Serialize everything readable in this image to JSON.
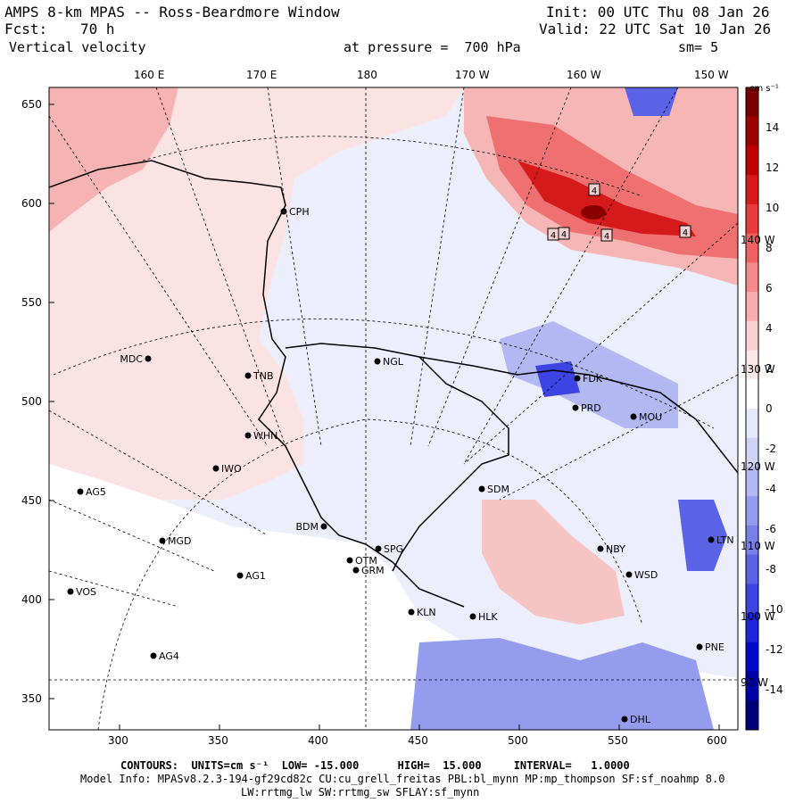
{
  "header": {
    "title": "AMPS 8-km MPAS -- Ross-Beardmore Window",
    "init": "Init: 00 UTC Thu 08 Jan 26",
    "fcst_label": "Fcst:",
    "fcst_value": "70 h",
    "valid": "Valid: 22 UTC Sat 10 Jan 26",
    "field": "Vertical velocity",
    "pressure": "at pressure =  700 hPa",
    "smooth": "sm= 5"
  },
  "axes": {
    "top_lon": [
      "160 E",
      "170 E",
      "180",
      "170 W",
      "160 W",
      "150 W"
    ],
    "x_ticks": [
      "300",
      "350",
      "400",
      "450",
      "500",
      "550",
      "600"
    ],
    "y_ticks": [
      "650",
      "600",
      "550",
      "500",
      "450",
      "400",
      "350"
    ],
    "right_lon": [
      "140 W",
      "130 W",
      "120 W",
      "110 W",
      "100 W",
      "90 W"
    ]
  },
  "colorbar": {
    "units": "cm s⁻¹",
    "labels": [
      "14",
      "12",
      "10",
      "8",
      "6",
      "4",
      "2",
      "0",
      "-2",
      "-4",
      "-6",
      "-8",
      "-10",
      "-12",
      "-14"
    ],
    "colors": [
      "#7a0000",
      "#9e0000",
      "#c00000",
      "#d61a1a",
      "#e83c3c",
      "#f06262",
      "#f48a8a",
      "#f7adad",
      "#fad0d0",
      "#fde8e8",
      "#ffffff",
      "#e6e9fb",
      "#cfd3f7",
      "#b2b8f1",
      "#949ced",
      "#7880ea",
      "#5a62e6",
      "#3c44e2",
      "#1e26dc",
      "#0008cc",
      "#0000a8",
      "#00007a"
    ]
  },
  "stations": [
    {
      "code": "CPH"
    },
    {
      "code": "MDC"
    },
    {
      "code": "TNB"
    },
    {
      "code": "NGL"
    },
    {
      "code": "FDK"
    },
    {
      "code": "PRD"
    },
    {
      "code": "MOU"
    },
    {
      "code": "WHN"
    },
    {
      "code": "IWO"
    },
    {
      "code": "AG5"
    },
    {
      "code": "SDM"
    },
    {
      "code": "BDM"
    },
    {
      "code": "SPG"
    },
    {
      "code": "OTM"
    },
    {
      "code": "GRM"
    },
    {
      "code": "MGD"
    },
    {
      "code": "AG1"
    },
    {
      "code": "VOS"
    },
    {
      "code": "KLN"
    },
    {
      "code": "HLK"
    },
    {
      "code": "NBY"
    },
    {
      "code": "WSD"
    },
    {
      "code": "LTN"
    },
    {
      "code": "PNE"
    },
    {
      "code": "AG4"
    },
    {
      "code": "DHL"
    }
  ],
  "contour_labels": [
    "4",
    "4",
    "4",
    "4",
    "4"
  ],
  "footer": {
    "contours": "CONTOURS:  UNITS=cm s⁻¹  LOW= -15.000      HIGH=  15.000     INTERVAL=   1.0000",
    "model_info": "Model Info: MPASv8.2.3-194-gf29cd82c CU:cu_grell_freitas PBL:bl_mynn MP:mp_thompson SF:sf_noahmp 8.0",
    "physics": "LW:rrtmg_lw SW:rrtmg_sw SFLAY:sf_mynn"
  }
}
